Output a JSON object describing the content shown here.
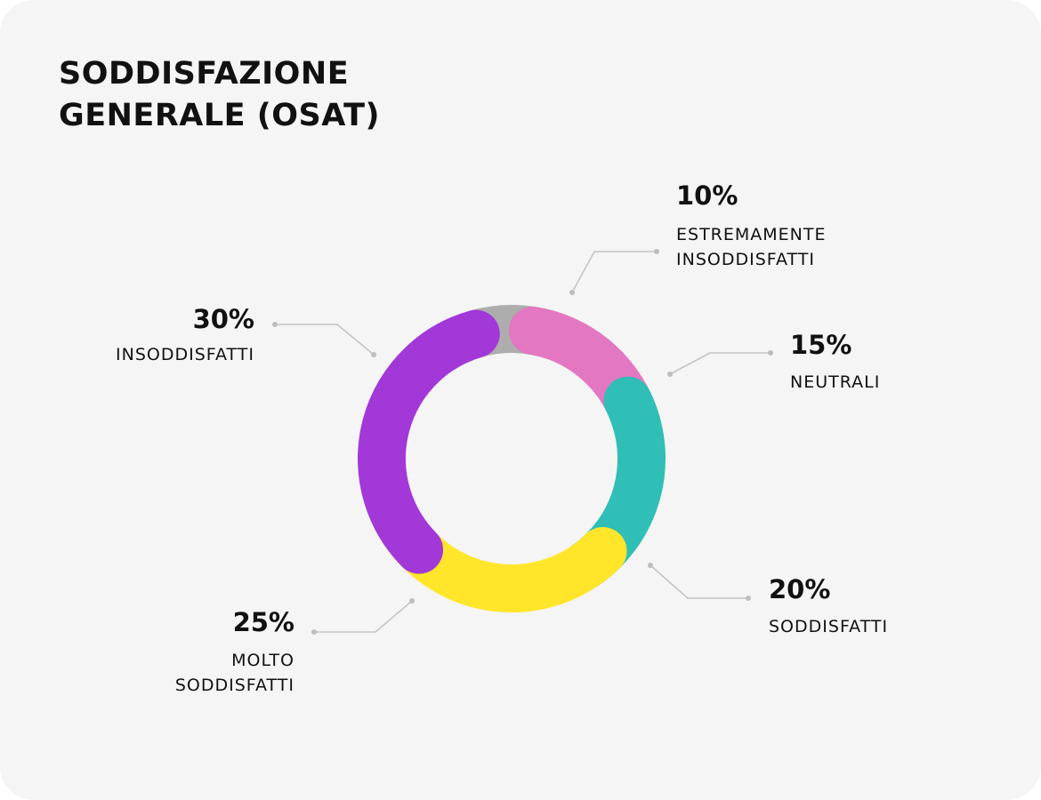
{
  "title_lines": [
    "SODDISFAZIONE",
    "GENERALE (OSAT)"
  ],
  "chart_data": {
    "type": "pie",
    "variant": "donut",
    "title": "SODDISFAZIONE GENERALE (OSAT)",
    "series": [
      {
        "label_lines": [
          "ESTREMAMENTE",
          "INSODDISFATTI"
        ],
        "value": 10,
        "value_label": "10%",
        "color": "#adadad"
      },
      {
        "label_lines": [
          "NEUTRALI"
        ],
        "value": 15,
        "value_label": "15%",
        "color": "#e377c2"
      },
      {
        "label_lines": [
          "SODDISFATTI"
        ],
        "value": 20,
        "value_label": "20%",
        "color": "#2fbfb6"
      },
      {
        "label_lines": [
          "MOLTO",
          "SODDISFATTI"
        ],
        "value": 25,
        "value_label": "25%",
        "color": "#ffe62a"
      },
      {
        "label_lines": [
          "INSODDISFATTI"
        ],
        "value": 30,
        "value_label": "30%",
        "color": "#a238d8"
      }
    ]
  }
}
